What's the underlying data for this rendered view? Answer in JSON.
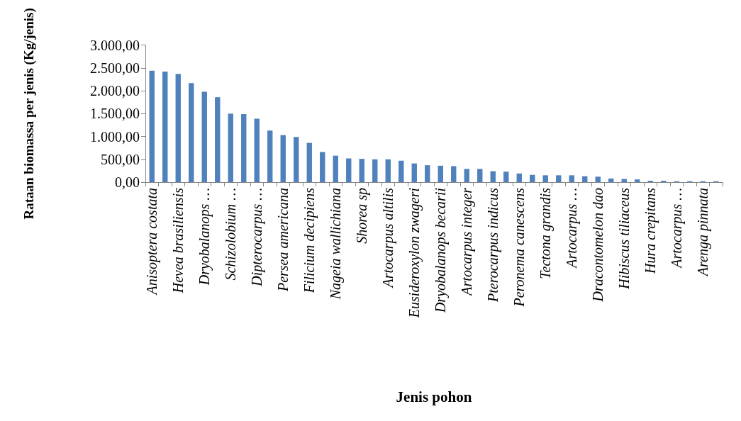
{
  "chart_data": {
    "type": "bar",
    "xlabel": "Jenis pohon",
    "ylabel": "Rataan biomassa per jenis (Kg/jenis)",
    "categories": [
      "Anisoptera costata",
      null,
      "Hevea brasiliensis",
      null,
      "Dryobalanops …",
      null,
      "Schizolobium …",
      null,
      "Dipterocarpus …",
      null,
      "Persea americana",
      null,
      "Filicium decipiens",
      null,
      "Nageia wallichiana",
      null,
      "Shorea sp",
      null,
      "Artocarpus altilis",
      null,
      "Eusideroxylon zwageri",
      null,
      "Dryobalanops becarii",
      null,
      "Artocarpus integer",
      null,
      "Pterocarpus indicus",
      null,
      "Peronema canescens",
      null,
      "Tectona grandis",
      null,
      "Artocarpus …",
      null,
      "Dracontomelon dao",
      null,
      "Hibiscus tiliaceus",
      null,
      "Hura crepitans",
      null,
      "Artocarpus …",
      null,
      "Arenga pinnata",
      null
    ],
    "values": [
      2440,
      2420,
      2370,
      2170,
      1980,
      1860,
      1500,
      1490,
      1390,
      1130,
      1030,
      990,
      860,
      660,
      580,
      520,
      510,
      500,
      500,
      470,
      410,
      370,
      360,
      350,
      290,
      290,
      240,
      230,
      190,
      160,
      150,
      150,
      150,
      130,
      120,
      80,
      70,
      60,
      30,
      30,
      20,
      20,
      20,
      20
    ],
    "color": "#4f81bd",
    "ylim": [
      0,
      3000
    ],
    "yticks": [
      {
        "value": 0,
        "label": "0,00"
      },
      {
        "value": 500,
        "label": "500,00"
      },
      {
        "value": 1000,
        "label": "1.000,00"
      },
      {
        "value": 1500,
        "label": "1.500,00"
      },
      {
        "value": 2000,
        "label": "2.000,00"
      },
      {
        "value": 2500,
        "label": "2.500,00"
      },
      {
        "value": 3000,
        "label": "3.000,00"
      }
    ],
    "grid": false
  }
}
